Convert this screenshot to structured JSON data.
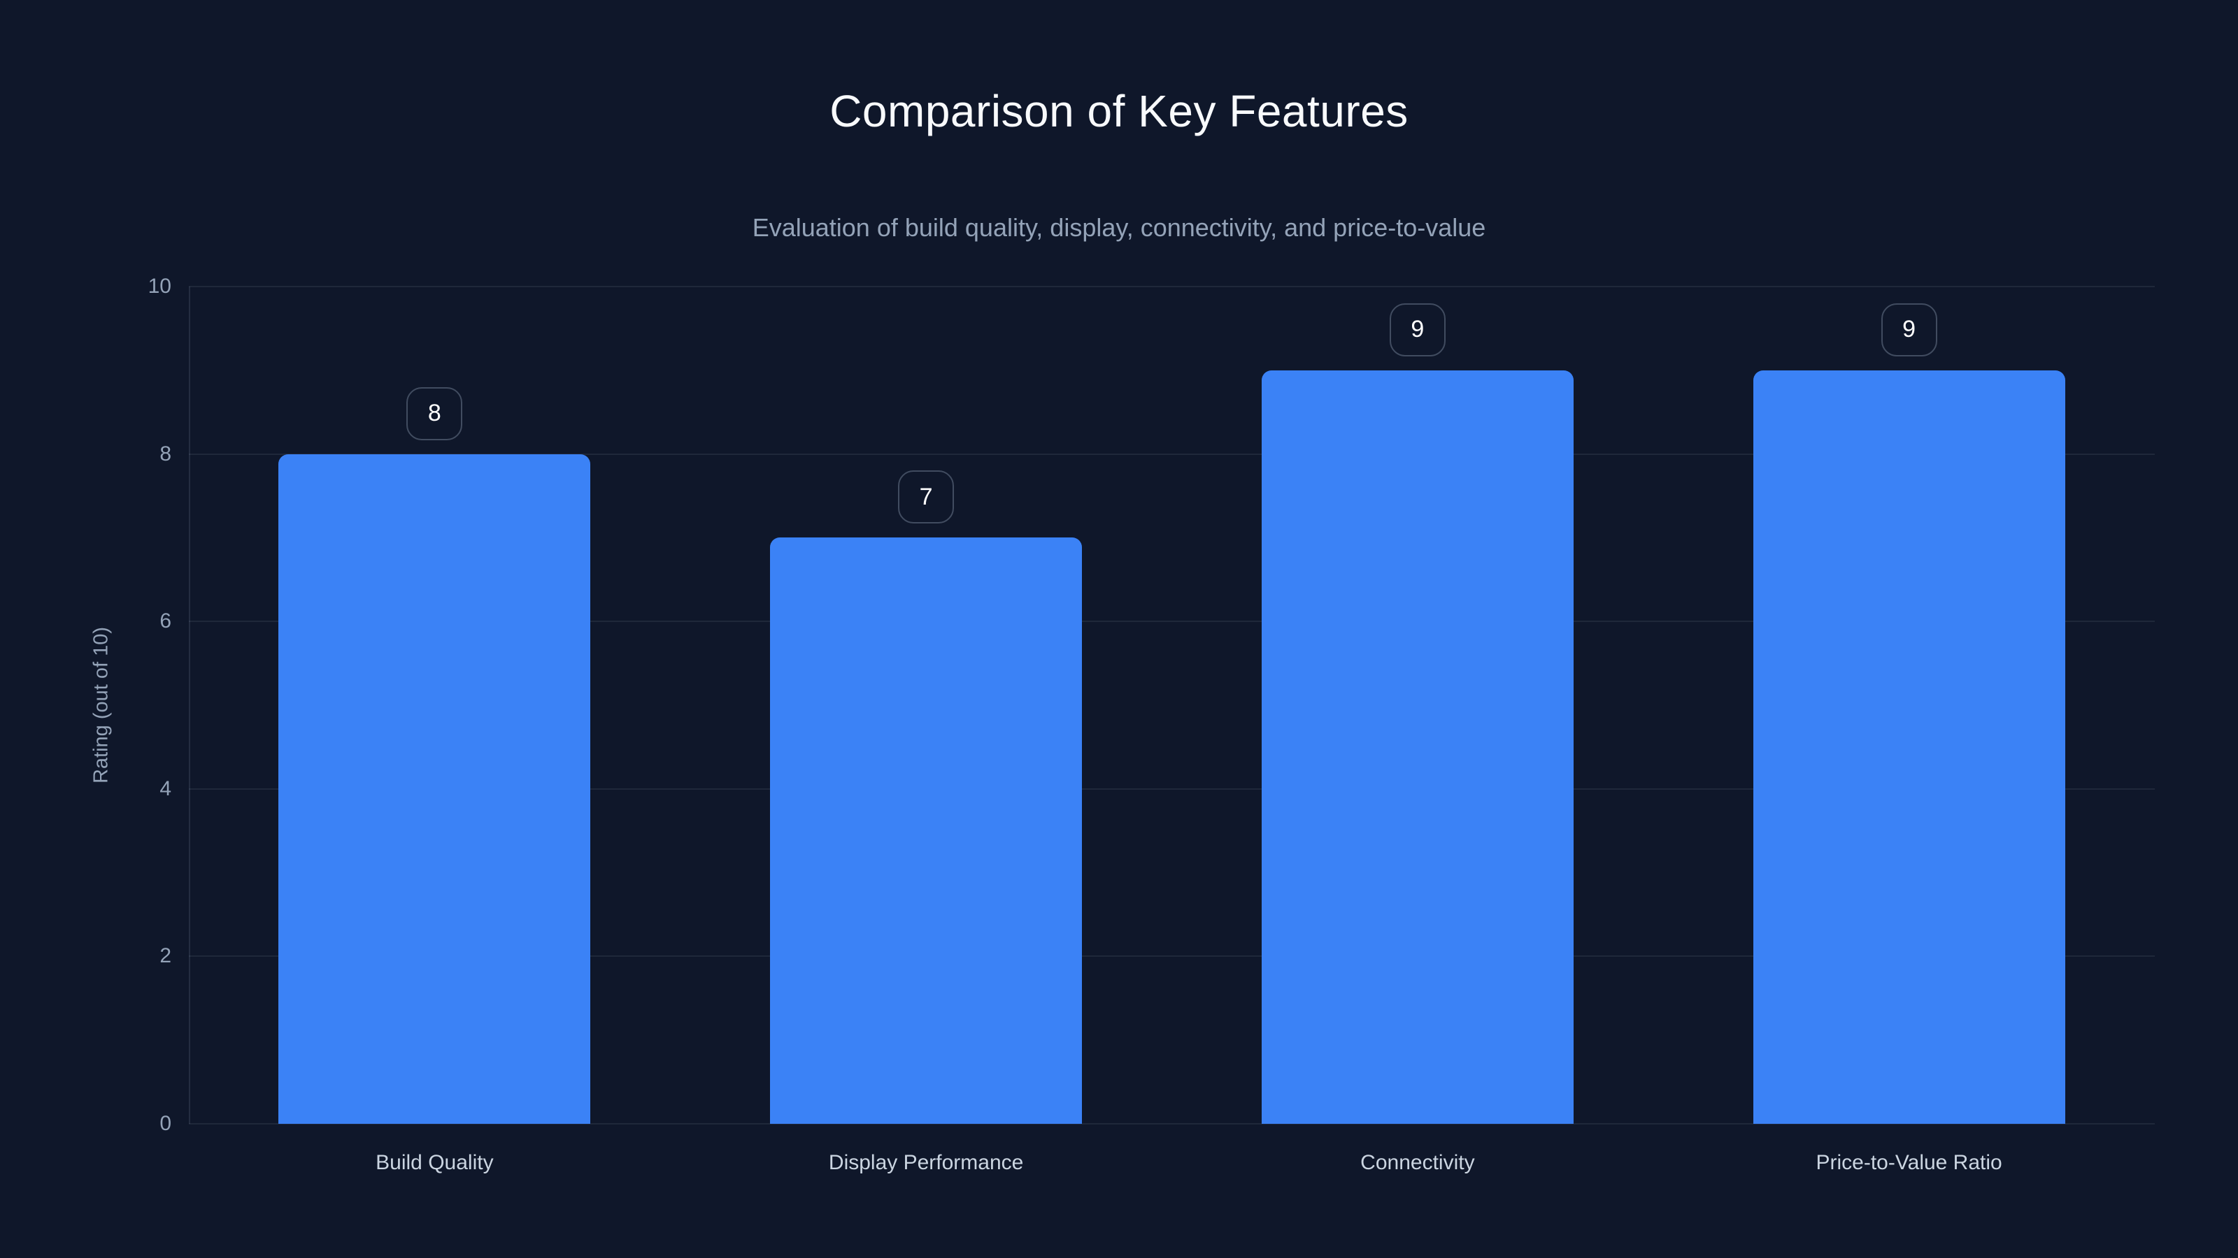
{
  "page": {
    "background_color": "#0f172a"
  },
  "header": {
    "title": "Comparison of Key Features",
    "subtitle": "Evaluation of build quality, display, connectivity, and price-to-value"
  },
  "chart_data": {
    "type": "bar",
    "title": "Comparison of Key Features",
    "subtitle": "Evaluation of build quality, display, connectivity, and price-to-value",
    "categories": [
      "Build Quality",
      "Display Performance",
      "Connectivity",
      "Price-to-Value Ratio"
    ],
    "values": [
      8,
      7,
      9,
      9
    ],
    "value_labels": [
      "8",
      "7",
      "9",
      "9"
    ],
    "xlabel": "",
    "ylabel": "Rating (out of 10)",
    "ylim": [
      0,
      10
    ],
    "yticks": [
      0,
      2,
      4,
      6,
      8,
      10
    ],
    "grid": true,
    "legend": false,
    "bar_color": "#3b82f6",
    "text_colors": {
      "title": "#f8fafc",
      "subtitle": "#94a3b8",
      "tick_labels": "#94a3b8",
      "category_labels": "#cbd5e1",
      "badge_text": "#ffffff"
    }
  }
}
